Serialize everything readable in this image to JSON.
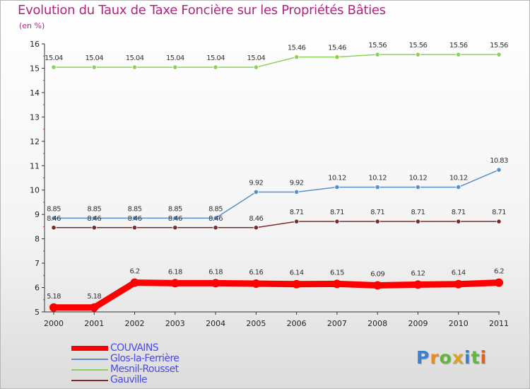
{
  "chart_data": {
    "type": "line",
    "title": "Evolution du Taux de Taxe Foncière sur les Propriétés Bâties",
    "subtitle": "(en %)",
    "xlabel": "",
    "ylabel": "",
    "ylim": [
      5,
      16
    ],
    "yticks": [
      "5",
      "6",
      "7",
      "8",
      "9",
      "10",
      "11",
      "12",
      "13",
      "14",
      "15",
      "16"
    ],
    "categories": [
      "2000",
      "2001",
      "2002",
      "2003",
      "2004",
      "2005",
      "2006",
      "2007",
      "2008",
      "2009",
      "2010",
      "2011"
    ],
    "series": [
      {
        "name": "COUVAINS",
        "color": "#ff0000",
        "values": [
          5.18,
          5.18,
          6.2,
          6.18,
          6.18,
          6.16,
          6.14,
          6.15,
          6.09,
          6.12,
          6.14,
          6.2
        ],
        "labels": [
          "5.18",
          "5.18",
          "6.2",
          "6.18",
          "6.18",
          "6.16",
          "6.14",
          "6.15",
          "6.09",
          "6.12",
          "6.14",
          "6.2"
        ]
      },
      {
        "name": "Glos-la-Ferrière",
        "color": "#5a8fc8",
        "values": [
          8.85,
          8.85,
          8.85,
          8.85,
          8.85,
          9.92,
          9.92,
          10.12,
          10.12,
          10.12,
          10.12,
          10.83
        ],
        "labels": [
          "8.85",
          "8.85",
          "8.85",
          "8.85",
          "8.85",
          "9.92",
          "9.92",
          "10.12",
          "10.12",
          "10.12",
          "10.12",
          "10.83"
        ]
      },
      {
        "name": "Mesnil-Rousset",
        "color": "#8cd25a",
        "values": [
          15.04,
          15.04,
          15.04,
          15.04,
          15.04,
          15.04,
          15.46,
          15.46,
          15.56,
          15.56,
          15.56,
          15.56
        ],
        "labels": [
          "15.04",
          "15.04",
          "15.04",
          "15.04",
          "15.04",
          "15.04",
          "15.46",
          "15.46",
          "15.56",
          "15.56",
          "15.56",
          "15.56"
        ]
      },
      {
        "name": "Gauville",
        "color": "#7a2a2a",
        "values": [
          8.46,
          8.46,
          8.46,
          8.46,
          8.46,
          8.46,
          8.71,
          8.71,
          8.71,
          8.71,
          8.71,
          8.71
        ],
        "labels": [
          "8.46",
          "8.46",
          "8.46",
          "8.46",
          "8.46",
          "8.46",
          "8.71",
          "8.71",
          "8.71",
          "8.71",
          "8.71",
          "8.71"
        ]
      }
    ],
    "legend_position": "bottom-left",
    "grid": false
  },
  "logo": {
    "letters": [
      "P",
      "r",
      "o",
      "x",
      "i",
      "t",
      "i"
    ],
    "colors": [
      "#3a7fd0",
      "#f08a1c",
      "#5fb83a",
      "#e0a020",
      "#3a7fd0",
      "#5fb83a",
      "#e06020"
    ]
  }
}
